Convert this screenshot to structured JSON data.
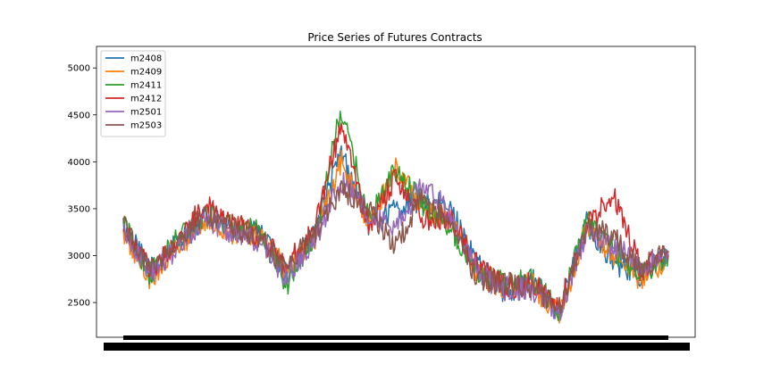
{
  "chart_data": {
    "type": "line",
    "title": "Price Series of Futures Contracts",
    "xlabel": "",
    "ylabel": "",
    "ylim": [
      2130,
      5230
    ],
    "yticks": [
      2500,
      3000,
      3500,
      4000,
      4500,
      5000
    ],
    "grid": false,
    "legend_placement": "top-left",
    "x_note": "x-axis tick labels are overplotted into an unreadable black band",
    "x": [
      0,
      5,
      10,
      15,
      20,
      25,
      30,
      35,
      40,
      45,
      50,
      55,
      60,
      65,
      70,
      75,
      80,
      85,
      90,
      95,
      100
    ],
    "series": [
      {
        "name": "m2408",
        "color": "#1f77b4",
        "values": [
          3300,
          2850,
          3150,
          3400,
          3300,
          3250,
          2800,
          3250,
          4100,
          3350,
          3500,
          3600,
          3500,
          2900,
          2600,
          2750,
          2400,
          3350,
          2900,
          2800,
          3000
        ]
      },
      {
        "name": "m2409",
        "color": "#ff7f0e",
        "values": [
          3200,
          2750,
          3100,
          3350,
          3250,
          3200,
          2850,
          3150,
          4000,
          3300,
          3950,
          3500,
          3400,
          2800,
          2650,
          2700,
          2350,
          3300,
          3000,
          2750,
          2950
        ]
      },
      {
        "name": "m2411",
        "color": "#2ca02c",
        "values": [
          3350,
          2800,
          3200,
          3450,
          3300,
          3250,
          2700,
          3200,
          4550,
          3400,
          3900,
          3550,
          3300,
          2850,
          2700,
          2750,
          2400,
          3400,
          3050,
          2800,
          3000
        ]
      },
      {
        "name": "m2412",
        "color": "#d62728",
        "values": [
          3250,
          2850,
          3150,
          3550,
          3350,
          3200,
          2900,
          3300,
          4400,
          3300,
          3850,
          3400,
          3400,
          2900,
          2650,
          2700,
          2450,
          3300,
          3650,
          2850,
          3050
        ]
      },
      {
        "name": "m2501",
        "color": "#9467bd",
        "values": [
          3300,
          2800,
          3100,
          3400,
          3250,
          3150,
          2750,
          3150,
          3800,
          3450,
          3300,
          3750,
          3450,
          2800,
          2650,
          2650,
          2400,
          3250,
          3100,
          2900,
          3000
        ]
      },
      {
        "name": "m2503",
        "color": "#8c564b",
        "values": [
          3350,
          2850,
          3150,
          3450,
          3300,
          3200,
          2850,
          3250,
          3700,
          3500,
          3100,
          3650,
          3350,
          2750,
          2700,
          2650,
          2450,
          3300,
          3200,
          2850,
          3050
        ]
      }
    ]
  }
}
